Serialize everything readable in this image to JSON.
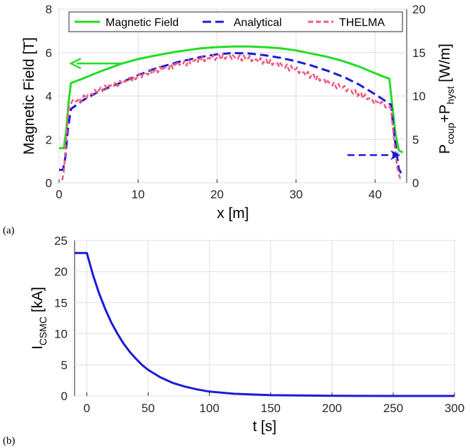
{
  "chart_data": [
    {
      "panel": "(a)",
      "type": "line",
      "xlabel": "x [m]",
      "ylabel_left": "Magnetic Field [T]",
      "ylabel_right": {
        "base": "P",
        "sub1": "coup",
        "mid": "+P",
        "sub2": "hyst",
        "unit": " [W/m]"
      },
      "xlim": [
        0,
        44
      ],
      "ylim_left": [
        0,
        8
      ],
      "ylim_right": [
        0,
        20
      ],
      "xticks": [
        0,
        10,
        20,
        30,
        40
      ],
      "yticks_left": [
        0,
        2,
        4,
        6,
        8
      ],
      "yticks_right": [
        0,
        5,
        10,
        15,
        20
      ],
      "grid": true,
      "legend_position": "top",
      "colors": {
        "magnetic_field": "#22dd22",
        "analytical": "#1a1adb",
        "thelma": "#f0597f"
      },
      "series": [
        {
          "name": "Magnetic Field",
          "axis": "left",
          "style": "solid",
          "x": [
            0,
            0.6,
            0.9,
            1.2,
            1.5,
            3,
            5,
            8,
            10,
            12,
            15,
            18,
            20,
            22,
            24,
            26,
            28,
            30,
            32,
            34,
            36,
            38,
            40,
            41,
            41.8,
            42.2,
            42.6,
            43,
            43.5
          ],
          "y": [
            1.6,
            1.6,
            2.4,
            3.7,
            4.6,
            4.8,
            5.1,
            5.5,
            5.7,
            5.85,
            6.05,
            6.2,
            6.25,
            6.28,
            6.28,
            6.25,
            6.2,
            6.1,
            5.95,
            5.8,
            5.6,
            5.35,
            5.05,
            4.9,
            4.8,
            3.5,
            2.2,
            1.5,
            1.4
          ]
        },
        {
          "name": "Analytical",
          "axis": "right",
          "style": "dashed",
          "x": [
            0,
            0.5,
            0.8,
            1.1,
            1.5,
            3,
            5,
            8,
            10,
            12,
            15,
            18,
            20,
            22,
            24,
            26,
            28,
            30,
            32,
            34,
            36,
            38,
            40,
            41,
            42,
            42.5,
            43,
            43.5
          ],
          "y": [
            1.5,
            1.5,
            3.0,
            6.0,
            8.5,
            9.5,
            10.5,
            11.6,
            12.4,
            13.1,
            13.9,
            14.5,
            14.8,
            14.95,
            14.9,
            14.7,
            14.4,
            14.0,
            13.5,
            12.9,
            12.2,
            11.3,
            10.2,
            9.6,
            9.0,
            5.0,
            1.6,
            0.8
          ]
        },
        {
          "name": "THELMA",
          "axis": "right",
          "style": "dashed",
          "x": [
            0.4,
            0.6,
            0.9,
            1.2,
            1.6,
            3,
            5,
            8,
            10,
            12,
            15,
            18,
            20,
            22,
            24,
            26,
            28,
            30,
            32,
            34,
            36,
            38,
            40,
            41,
            42,
            42.4,
            42.8,
            43.2
          ],
          "y": [
            0.3,
            1.3,
            5.0,
            8.6,
            9.3,
            9.7,
            10.7,
            11.6,
            12.2,
            12.9,
            13.6,
            14.2,
            14.5,
            14.5,
            14.3,
            14.0,
            13.6,
            13.0,
            12.3,
            11.6,
            10.9,
            10.2,
            9.4,
            9.0,
            8.6,
            5.0,
            1.8,
            0.4
          ]
        }
      ],
      "annotations": [
        {
          "type": "arrow",
          "color": "#22dd22",
          "style": "solid",
          "direction": "left",
          "points_to_axis": "left",
          "from": [
            8,
            5.5
          ],
          "to": [
            1.5,
            5.5
          ]
        },
        {
          "type": "arrow",
          "color": "#1a1adb",
          "style": "dashed",
          "direction": "right",
          "points_to_axis": "right",
          "from": [
            36.5,
            3.2
          ],
          "to": [
            43.2,
            3.2
          ]
        }
      ]
    },
    {
      "panel": "(b)",
      "type": "line",
      "xlabel": "t [s]",
      "ylabel": {
        "base": "I",
        "sub": "CSMC",
        "unit": " [kA]"
      },
      "xlim": [
        -10,
        300
      ],
      "ylim": [
        0,
        25
      ],
      "xticks": [
        0,
        50,
        100,
        150,
        200,
        250,
        300
      ],
      "yticks": [
        0,
        5,
        10,
        15,
        20,
        25
      ],
      "grid": true,
      "colors": {
        "current": "#1a1adb"
      },
      "series": [
        {
          "axis": "left",
          "style": "solid",
          "x": [
            -10,
            0,
            5,
            10,
            15,
            20,
            25,
            30,
            35,
            40,
            45,
            50,
            60,
            70,
            80,
            90,
            100,
            120,
            150,
            200,
            250,
            300
          ],
          "y": [
            23,
            23,
            19.5,
            16.5,
            14.0,
            11.8,
            10.0,
            8.4,
            7.1,
            6.0,
            5.0,
            4.2,
            3.0,
            2.1,
            1.5,
            1.05,
            0.7,
            0.35,
            0.12,
            0.03,
            0.0,
            0.0
          ]
        }
      ]
    }
  ]
}
